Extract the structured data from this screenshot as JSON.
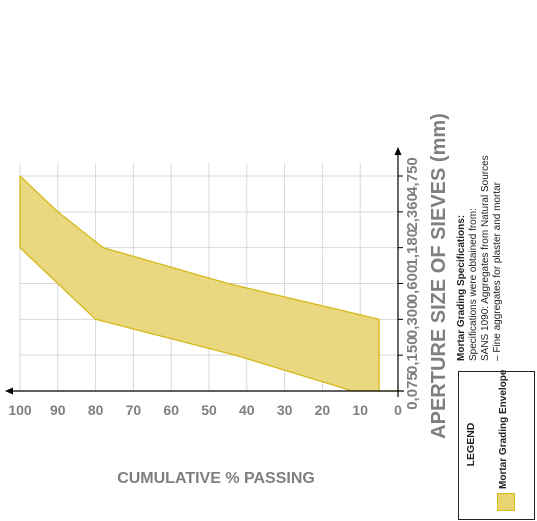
{
  "chart_data": {
    "type": "area",
    "title": "",
    "xlabel": "APERTURE SIZE OF SIEVES (mm)",
    "ylabel": "CUMULATIVE % PASSING",
    "x_ticks": [
      "0,075",
      "0,150",
      "0,300",
      "0,600",
      "1,180",
      "2,360",
      "4,750"
    ],
    "y_ticks": [
      "0",
      "10",
      "20",
      "30",
      "40",
      "50",
      "60",
      "70",
      "80",
      "90",
      "100"
    ],
    "ylim": [
      0,
      100
    ],
    "x_scale": "categorical (equal spacing per sieve size)",
    "grid": true,
    "series": [
      {
        "name": "Mortar Grading Envelope",
        "upper": [
          {
            "x": "0,075",
            "y": 0
          },
          {
            "x": "0,075",
            "y": 12
          },
          {
            "x": "0,150",
            "y": 43
          },
          {
            "x": "0,300",
            "y": 80
          },
          {
            "x": "0,600",
            "y": 90
          },
          {
            "x": "1,180",
            "y": 100
          },
          {
            "x": "4,750",
            "y": 100
          }
        ],
        "lower": [
          {
            "x": "0,075",
            "y": 0
          },
          {
            "x": "0,075",
            "y": 5
          },
          {
            "x": "0,300",
            "y": 5
          },
          {
            "x": "0,600",
            "y": 45
          },
          {
            "x": "1,180",
            "y": 78
          },
          {
            "x": "2,360",
            "y": 90
          },
          {
            "x": "4,750",
            "y": 100
          }
        ]
      }
    ],
    "colors": {
      "fill": "#e8d472",
      "stroke": "#d6b81a",
      "grid": "#d9d9d9",
      "text": "#7f7f7f"
    }
  },
  "legend": {
    "title": "LEGEND",
    "label": "Mortar Grading Envelope"
  },
  "specifications": {
    "title": "Mortar Grading Specifications:",
    "lines": [
      "Specifications were obtained from:",
      "SANS 1090: Aggregates from Natural Sources",
      "– Fine aggregates for plaster and mortar"
    ]
  }
}
